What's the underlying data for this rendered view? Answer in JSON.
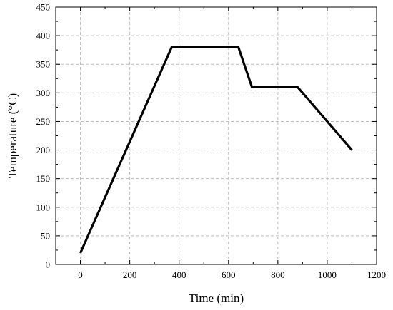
{
  "chart_data": {
    "type": "line",
    "xlabel": "Time (min)",
    "ylabel": "Temperature (°C)",
    "xlim": [
      -100,
      1200
    ],
    "ylim": [
      0,
      450
    ],
    "xticks": [
      0,
      200,
      400,
      600,
      800,
      1000,
      1200
    ],
    "yticks": [
      0,
      50,
      100,
      150,
      200,
      250,
      300,
      350,
      400,
      450
    ],
    "grid": true,
    "series": [
      {
        "x": [
          0,
          370,
          640,
          695,
          880,
          1100
        ],
        "y": [
          20,
          380,
          380,
          310,
          310,
          200
        ]
      }
    ],
    "colors": {
      "line": "#000000",
      "grid": "#bdbdbd",
      "axes": "#000000"
    }
  }
}
